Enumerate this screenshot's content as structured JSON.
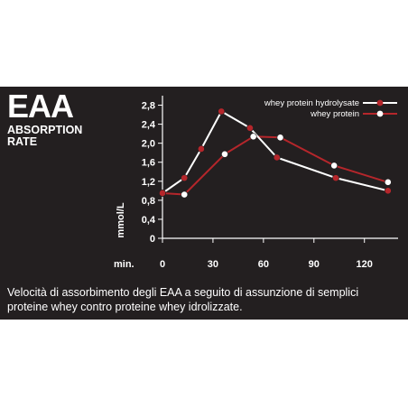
{
  "heading": {
    "title": "EAA",
    "subtitle_line1": "ABSORPTION",
    "subtitle_line2": "RATE"
  },
  "caption": "Velocità di assorbimento degli EAA a seguito di assunzione di semplici proteine whey contro proteine whey idrolizzate.",
  "colors": {
    "background": "#231f20",
    "hydrolysate_marker": "#b5262b",
    "hydrolysate_line": "#ffffff",
    "whey_marker": "#ffffff",
    "whey_line": "#b5262b"
  },
  "chart_data": {
    "type": "line",
    "title": "",
    "xlabel": "min.",
    "ylabel": "mmol/L",
    "xlim": [
      0,
      140
    ],
    "ylim": [
      0,
      3.0
    ],
    "x_ticks": [
      0,
      30,
      60,
      90,
      120
    ],
    "x_tick_labels": [
      "0",
      "30",
      "60",
      "90",
      "120"
    ],
    "y_ticks": [
      0,
      0.4,
      0.8,
      1.2,
      1.6,
      2.0,
      2.4,
      2.8
    ],
    "y_tick_labels": [
      "0",
      "0,4",
      "0,8",
      "1,2",
      "1,6",
      "2,0",
      "2,4",
      "2,8"
    ],
    "grid": false,
    "legend_position": "top-right",
    "series": [
      {
        "name": "whey protein hydrolysate",
        "line_color": "#ffffff",
        "marker_color": "#b5262b",
        "x": [
          0,
          13,
          23,
          35,
          52,
          68,
          103,
          134
        ],
        "y": [
          0.95,
          1.27,
          1.88,
          2.67,
          2.32,
          1.7,
          1.27,
          1.0
        ]
      },
      {
        "name": "whey protein",
        "line_color": "#b5262b",
        "marker_color": "#ffffff",
        "x": [
          0,
          13,
          37,
          54,
          70,
          102,
          134
        ],
        "y": [
          0.95,
          0.92,
          1.77,
          2.14,
          2.12,
          1.53,
          1.18
        ]
      }
    ]
  }
}
